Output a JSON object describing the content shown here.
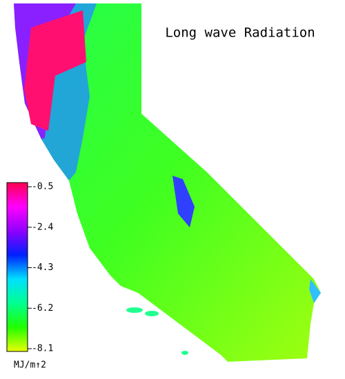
{
  "title": "Long wave Radiation",
  "colorbar": {
    "lim": [
      -8.1,
      -0.5
    ],
    "ticks": [
      -0.5,
      -2.4,
      -4.3,
      -6.2,
      -8.1
    ],
    "label": "MJ/m↑2",
    "colors": [
      "#e8ff00",
      "#20ff00",
      "#00ff90",
      "#00e0ff",
      "#0020ff",
      "#9000ff",
      "#ff00ff",
      "#ff0050"
    ]
  }
}
